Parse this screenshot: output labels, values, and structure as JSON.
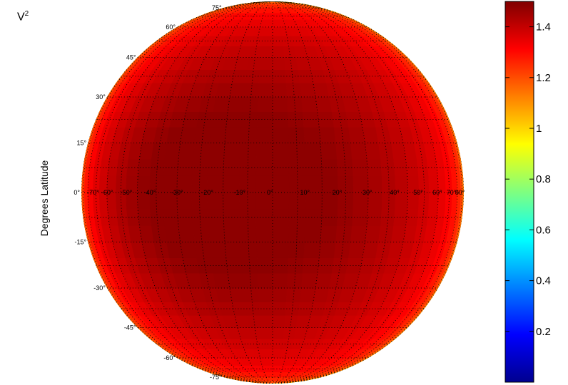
{
  "title": {
    "base": "V",
    "sup": "2"
  },
  "ylabel": "Degrees Latitude",
  "colorbar": {
    "ticks": [
      "0.2",
      "0.4",
      "0.6",
      "0.8",
      "1",
      "1.2",
      "1.4"
    ],
    "min": 0.0,
    "max": 1.5
  },
  "chart_data": {
    "type": "heatmap",
    "projection": "orthographic",
    "title": "V²",
    "ylabel": "Degrees Latitude",
    "lat_labels": [
      "75°",
      "60°",
      "45°",
      "30°",
      "15°",
      "0°",
      "-15°",
      "-30°",
      "-45°",
      "-60°",
      "-75°"
    ],
    "lon_labels": [
      "-70°",
      "-60°",
      "-50°",
      "-40°",
      "-30°",
      "-20°",
      "-10°",
      "0°",
      "10°",
      "20°",
      "30°",
      "40°",
      "50°",
      "60°",
      "70°",
      "80°"
    ],
    "peak": {
      "lat": 0,
      "lon": -25,
      "value": 1.48
    },
    "limb_value": 0.9,
    "clim": [
      0,
      1.5
    ]
  }
}
